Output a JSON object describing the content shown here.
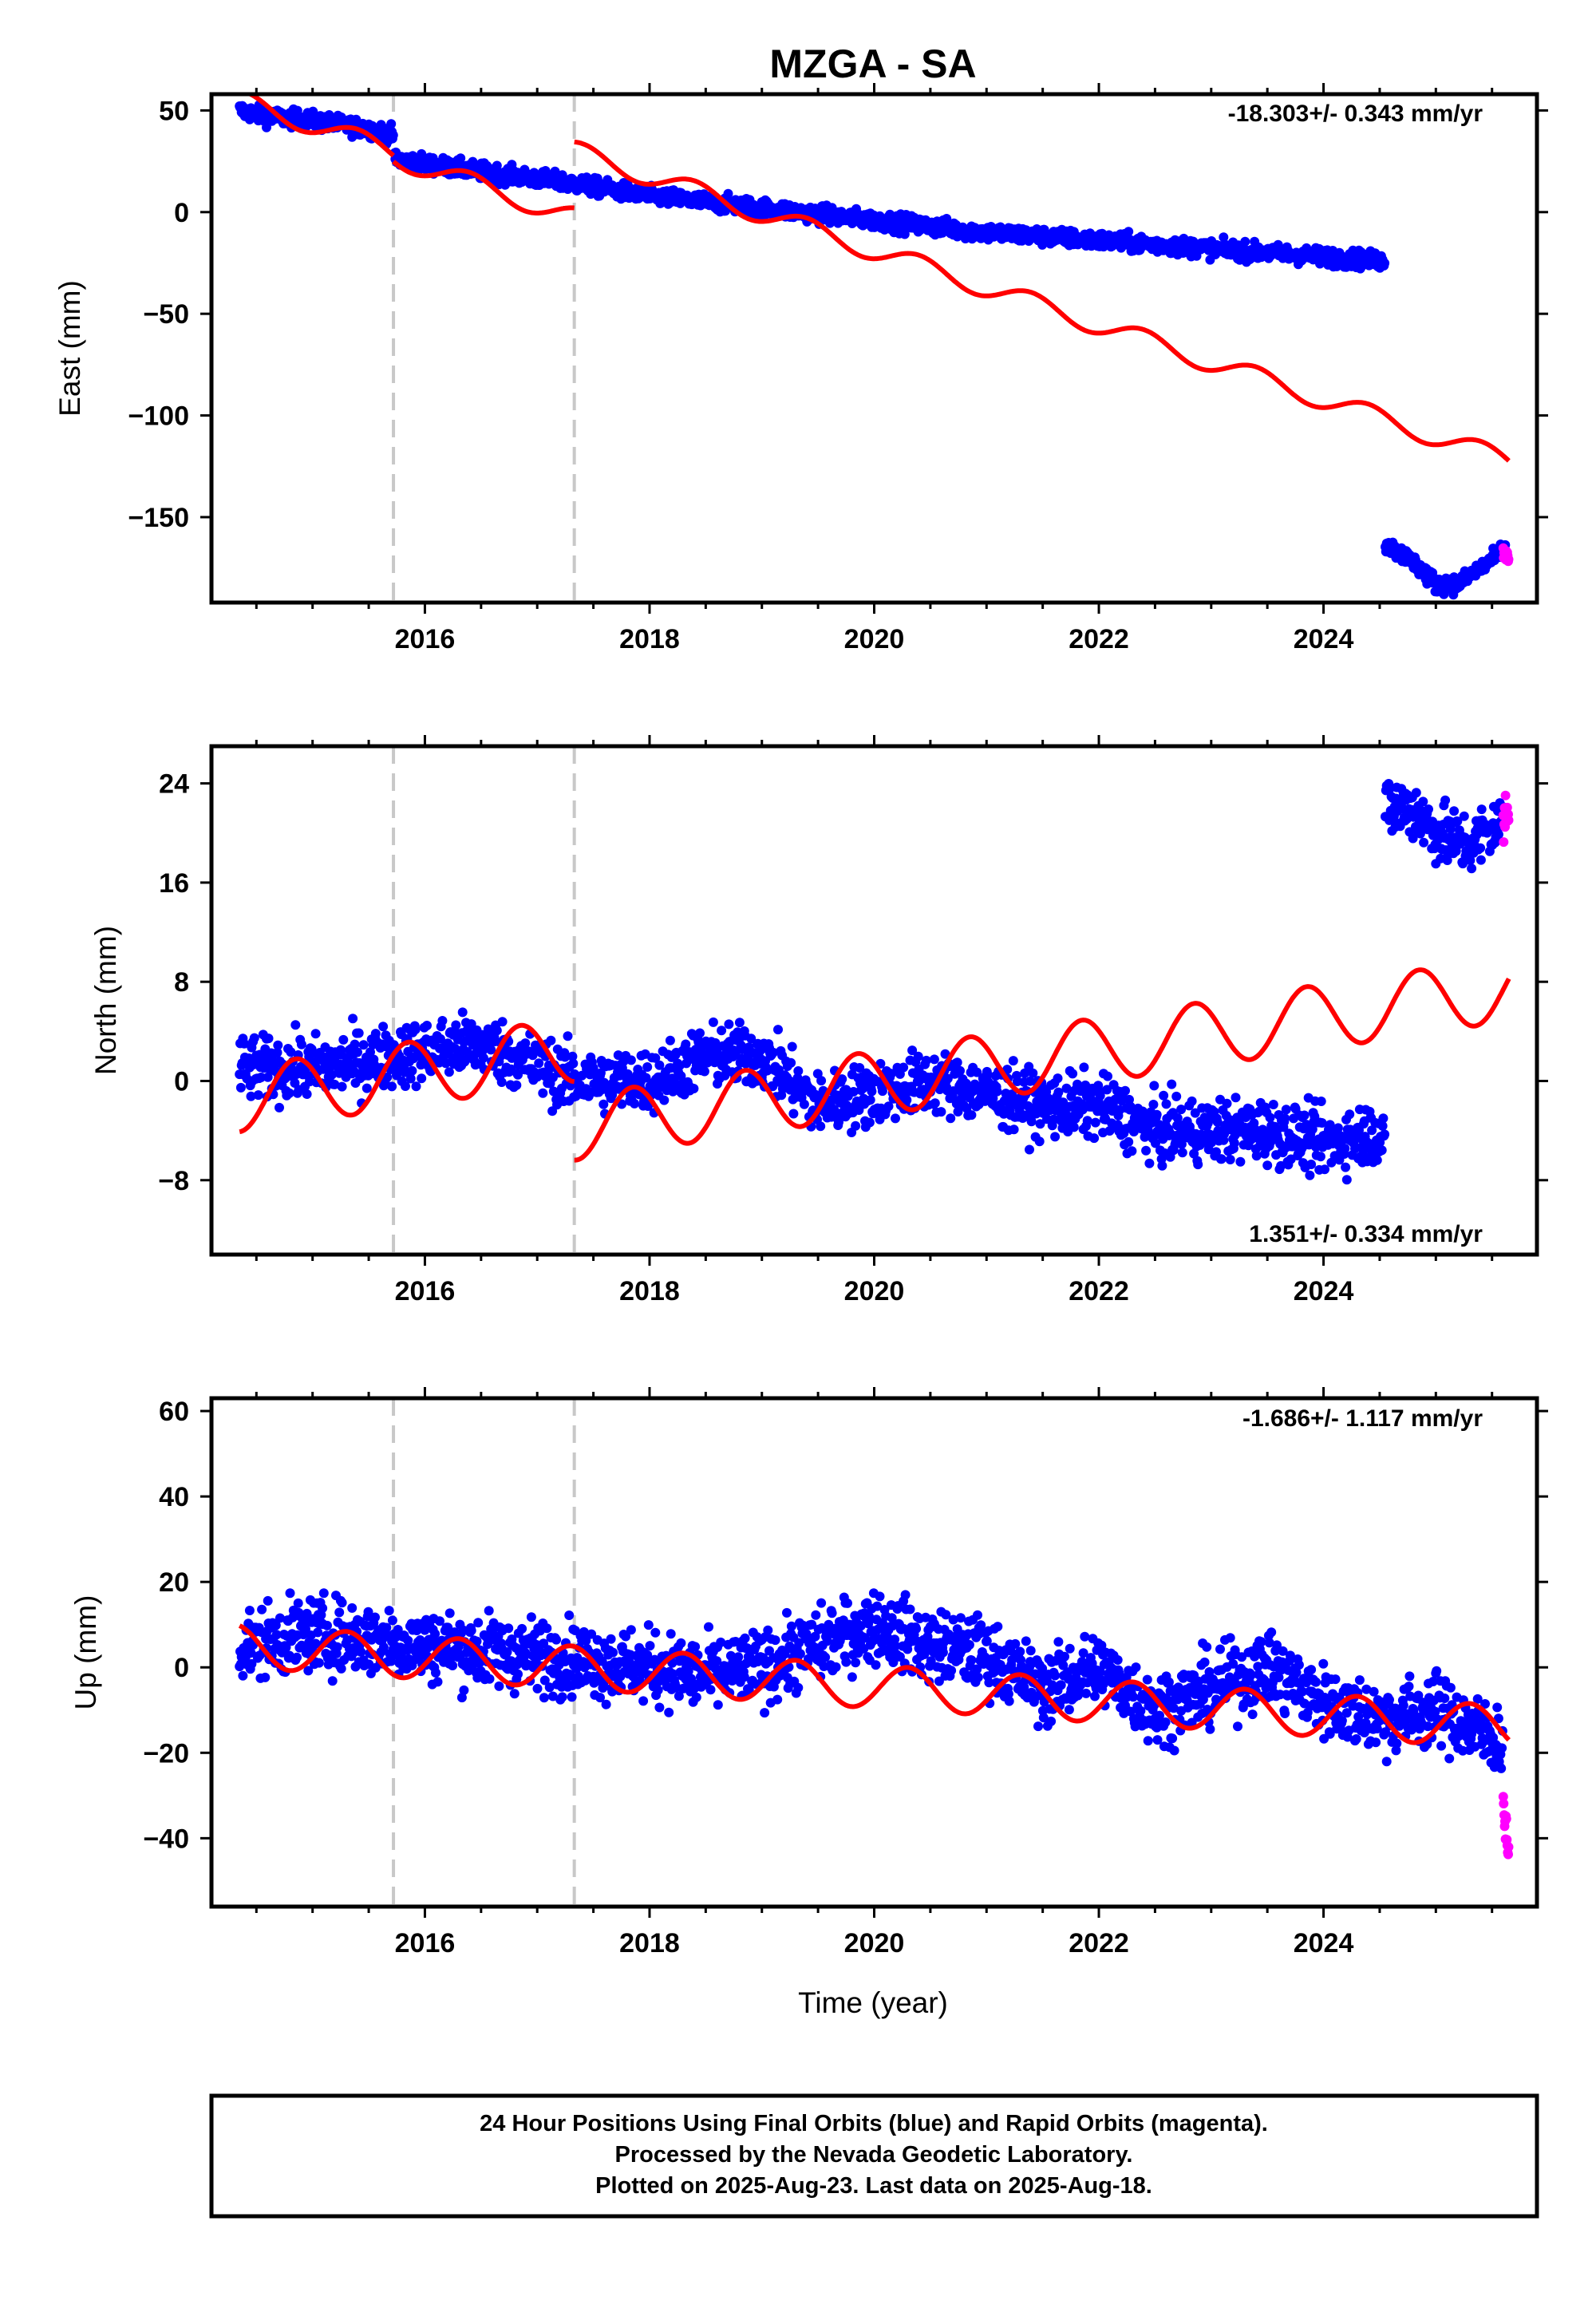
{
  "title": "MZGA - SA",
  "xlabel": "Time (year)",
  "footer": [
    "24 Hour Positions Using Final Orbits (blue) and Rapid Orbits (magenta).",
    "Processed by the Nevada Geodetic Laboratory.",
    "Plotted on 2025-Aug-23. Last data on 2025-Aug-18."
  ],
  "colors": {
    "final": "#0000ff",
    "rapid": "#ff00ff",
    "model": "#ff0000",
    "event_line": "#c8c8c8",
    "frame": "#000000"
  },
  "chart_data": [
    {
      "type": "scatter",
      "panel": "east",
      "ylabel": "East (mm)",
      "rate_text": "-18.303+/- 0.343 mm/yr",
      "xlim": [
        2014.1,
        2025.9
      ],
      "ylim": [
        -192,
        58
      ],
      "xticks": [
        2016,
        2018,
        2020,
        2022,
        2024
      ],
      "yticks": [
        50,
        0,
        -50,
        -100,
        -150
      ],
      "event_lines_x": [
        2015.72,
        2017.33
      ],
      "series": [
        {
          "name": "Final Orbits",
          "segments": [
            {
              "x": [
                2014.35,
                2014.6,
                2015.0,
                2015.5,
                2015.72
              ],
              "y": [
                50,
                47,
                45,
                41,
                38
              ]
            },
            {
              "x": [
                2015.73,
                2016.5,
                2017.33,
                2018.0,
                2019.0,
                2020.0,
                2021.0,
                2022.0,
                2023.0,
                2024.0,
                2024.55
              ],
              "y": [
                26,
                20,
                14,
                8,
                2,
                -4,
                -10,
                -14,
                -18,
                -22,
                -24
              ]
            },
            {
              "x": [
                2024.55,
                2024.8,
                2025.0,
                2025.2,
                2025.5,
                2025.62
              ],
              "y": [
                -163,
                -172,
                -183,
                -183,
                -171,
                -165
              ]
            }
          ],
          "noise": 3
        },
        {
          "name": "Rapid Orbits",
          "segments": [
            {
              "x": [
                2025.6,
                2025.65
              ],
              "y": [
                -167,
                -171
              ]
            }
          ],
          "noise": 3
        },
        {
          "name": "Model",
          "rate": -18.303,
          "amp": 5,
          "phase": 0.15,
          "segments": [
            {
              "x0": 2014.35,
              "x1": 2015.72,
              "y0": 55
            },
            {
              "x0": 2015.72,
              "x1": 2017.33,
              "y0": 27
            },
            {
              "x0": 2017.33,
              "x1": 2025.65,
              "y0": 30
            }
          ]
        }
      ]
    },
    {
      "type": "scatter",
      "panel": "north",
      "ylabel": "North (mm)",
      "rate_text": "1.351+/- 0.334 mm/yr",
      "xlim": [
        2014.1,
        2025.9
      ],
      "ylim": [
        -14,
        27
      ],
      "xticks": [
        2016,
        2018,
        2020,
        2022,
        2024
      ],
      "yticks": [
        24,
        16,
        8,
        0,
        -8
      ],
      "event_lines_x": [
        2015.72,
        2017.33
      ],
      "series": [
        {
          "name": "Final Orbits",
          "segments": [
            {
              "x": [
                2014.35,
                2015.0,
                2015.72,
                2016.5,
                2017.33,
                2018.0,
                2018.5,
                2019.0,
                2019.5,
                2020.0,
                2020.5,
                2021.0,
                2021.5,
                2022.0,
                2022.5,
                2023.0,
                2023.5,
                2024.0,
                2024.55
              ],
              "y": [
                1,
                1,
                2,
                3,
                0,
                0,
                2,
                2,
                -2,
                -1,
                0,
                -1,
                -2,
                -2,
                -4,
                -4,
                -4,
                -5,
                -4
              ]
            },
            {
              "x": [
                2024.55,
                2024.8,
                2025.0,
                2025.3,
                2025.6
              ],
              "y": [
                22,
                22,
                20,
                19,
                21
              ]
            }
          ],
          "noise": 1.8
        },
        {
          "name": "Rapid Orbits",
          "segments": [
            {
              "x": [
                2025.6,
                2025.65
              ],
              "y": [
                21,
                22
              ]
            }
          ],
          "noise": 1.5
        },
        {
          "name": "Model",
          "rate": 1.351,
          "amp": 2.6,
          "phase": 0.6,
          "segments": [
            {
              "x0": 2014.35,
              "x1": 2017.33,
              "y0": -1.5
            },
            {
              "x0": 2017.33,
              "x1": 2025.65,
              "y0": -3.8
            }
          ]
        }
      ]
    },
    {
      "type": "scatter",
      "panel": "up",
      "ylabel": "Up (mm)",
      "rate_text": "-1.686+/- 1.117 mm/yr",
      "xlim": [
        2014.1,
        2025.9
      ],
      "ylim": [
        -56,
        63
      ],
      "xticks": [
        2016,
        2018,
        2020,
        2022,
        2024
      ],
      "yticks": [
        60,
        40,
        20,
        0,
        -20,
        -40
      ],
      "event_lines_x": [
        2015.72,
        2017.33
      ],
      "series": [
        {
          "name": "Final Orbits",
          "segments": [
            {
              "x": [
                2014.35,
                2015.0,
                2015.72,
                2016.5,
                2017.33,
                2018.0,
                2018.5,
                2019.0,
                2019.5,
                2020.0,
                2020.5,
                2021.0,
                2021.5,
                2022.0,
                2022.5,
                2023.0,
                2023.5,
                2024.0,
                2024.5,
                2025.0,
                2025.6
              ],
              "y": [
                5,
                8,
                6,
                4,
                2,
                0,
                -2,
                0,
                5,
                10,
                5,
                3,
                -5,
                0,
                -10,
                -5,
                0,
                -8,
                -12,
                -10,
                -18
              ]
            }
          ],
          "noise": 6
        },
        {
          "name": "Rapid Orbits",
          "segments": [
            {
              "x": [
                2025.6,
                2025.65
              ],
              "y": [
                -32,
                -44
              ]
            }
          ],
          "noise": 3
        },
        {
          "name": "Model",
          "rate": -1.686,
          "amp": 5,
          "phase": 0.05,
          "segments": [
            {
              "x0": 2014.35,
              "x1": 2025.65,
              "y0": 5
            }
          ]
        }
      ]
    }
  ]
}
